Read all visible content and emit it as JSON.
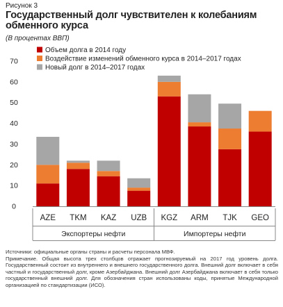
{
  "figure_label": "Рисунок 3",
  "title": "Государственный долг чувствителен к колебаниям обменного курса",
  "subtitle": "(В процентах ВВП)",
  "colors": {
    "stock_2014": "#c00000",
    "exchange_rate": "#ed7d31",
    "new_debt": "#a6a6a6"
  },
  "chart_data": {
    "type": "bar",
    "stacked": true,
    "title": "Государственный долг чувствителен к колебаниям обменного курса",
    "subtitle": "(В процентах ВВП)",
    "categories": [
      "AZE",
      "TKM",
      "KAZ",
      "UZB",
      "KGZ",
      "ARM",
      "TJK",
      "GEO"
    ],
    "groups": [
      {
        "label": "Экспортеры нефти",
        "categories": [
          "AZE",
          "TKM",
          "KAZ",
          "UZB"
        ]
      },
      {
        "label": "Импортеры нефти",
        "categories": [
          "KGZ",
          "ARM",
          "TJK",
          "GEO"
        ]
      }
    ],
    "series": [
      {
        "name": "Объем долга в 2014 году",
        "color": "#c00000",
        "values": [
          11,
          18,
          14.5,
          7.5,
          53,
          38.5,
          27.5,
          36
        ]
      },
      {
        "name": "Воздействие изменений обменного курса в 2014–2017 годах",
        "color": "#ed7d31",
        "values": [
          9,
          3,
          2.5,
          1.5,
          7,
          2,
          10,
          10
        ]
      },
      {
        "name": "Новый долг в 2014–2017 годах",
        "color": "#a6a6a6",
        "values": [
          13.5,
          1,
          5,
          4.5,
          3,
          13.5,
          12,
          0
        ]
      }
    ],
    "ylim": [
      0,
      70
    ],
    "yticks": [
      0,
      10,
      20,
      30,
      40,
      50,
      60,
      70
    ],
    "legend_position": "top-left",
    "grid": false
  },
  "notes": [
    "Источники: официальные органы страны и расчеты персонала МВФ.",
    "Примечание. Общая высота трех столбцов отражает прогнозируемый на 2017 год уровень долга. Государственный состоит из внутреннего и внешнего государственного долга. Внешний долг включает в себя частный и государственный долг, кроме Азербайджана. Внешний долг Азербайджана включает в себя только государственный внешний долг. Для обозначения стран использованы коды, принятые Международной организацией по стандартизации (ИСО)."
  ]
}
